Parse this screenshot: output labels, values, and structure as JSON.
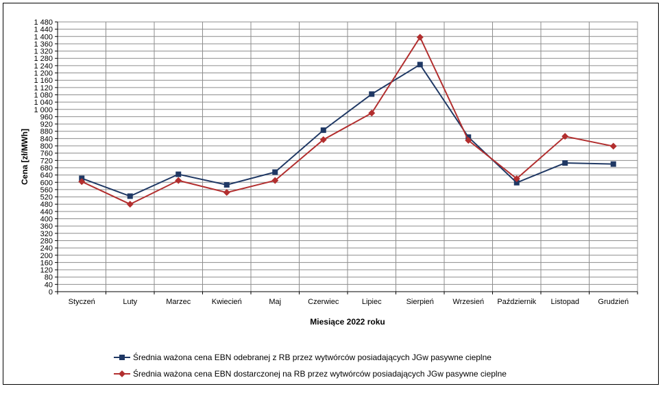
{
  "chart_data": {
    "type": "line",
    "title": "",
    "xlabel": "Miesiące 2022  roku",
    "ylabel": "Cena [zł/MWh]",
    "ylim": [
      0,
      1480
    ],
    "ytick_step": 40,
    "grid": true,
    "legend_position": "bottom",
    "categories": [
      "Styczeń",
      "Luty",
      "Marzec",
      "Kwiecień",
      "Maj",
      "Czerwiec",
      "Lipiec",
      "Sierpień",
      "Wrzesień",
      "Październik",
      "Listopad",
      "Grudzień"
    ],
    "series": [
      {
        "name": "Średnia ważona cena EBN odebranej z RB przez wytwórców posiadających JGw pasywne cieplne",
        "color": "#1f3864",
        "marker": "square",
        "values": [
          622,
          524,
          644,
          586,
          656,
          886,
          1084,
          1246,
          848,
          598,
          706,
          700
        ]
      },
      {
        "name": "Średnia ważona cena EBN dostarczonej na RB przez wytwórców posiadających JGw pasywne cieplne",
        "color": "#b22e2e",
        "marker": "diamond",
        "values": [
          604,
          480,
          610,
          544,
          610,
          834,
          980,
          1396,
          830,
          620,
          852,
          798
        ]
      }
    ]
  }
}
